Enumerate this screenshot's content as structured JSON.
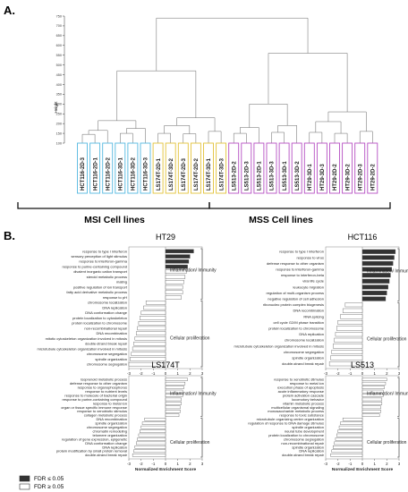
{
  "panel_labels": {
    "a": "A.",
    "b": "B."
  },
  "dendrogram": {
    "ylabel": "Height",
    "yticks": [
      "100",
      "150",
      "200",
      "250",
      "300",
      "350",
      "400",
      "450",
      "500",
      "550",
      "600",
      "650",
      "700",
      "750"
    ],
    "leaves": [
      {
        "label": "HCT116-2D-3",
        "group": "hct"
      },
      {
        "label": "HCT116-2D-1",
        "group": "hct"
      },
      {
        "label": "HCT116-2D-2",
        "group": "hct"
      },
      {
        "label": "HCT116-3D-1",
        "group": "hct"
      },
      {
        "label": "HCT116-3D-2",
        "group": "hct"
      },
      {
        "label": "HCT116-3D-3",
        "group": "hct"
      },
      {
        "label": "LS174T-2D-1",
        "group": "ls174"
      },
      {
        "label": "LS174T-3D-2",
        "group": "ls174"
      },
      {
        "label": "LS174T-2D-3",
        "group": "ls174"
      },
      {
        "label": "LS174T-2D-2",
        "group": "ls174"
      },
      {
        "label": "LS174T-3D-1",
        "group": "ls174"
      },
      {
        "label": "LS174T-3D-3",
        "group": "ls174"
      },
      {
        "label": "LS513-2D-2",
        "group": "ls513"
      },
      {
        "label": "LS513-2D-3",
        "group": "ls513"
      },
      {
        "label": "LS513-2D-1",
        "group": "ls513"
      },
      {
        "label": "LS513-3D-3",
        "group": "ls513"
      },
      {
        "label": "LS513-3D-1",
        "group": "ls513"
      },
      {
        "label": "LS513-3D-2",
        "group": "ls513"
      },
      {
        "label": "HT29-3D-1",
        "group": "ht29"
      },
      {
        "label": "HT29-3D-3",
        "group": "ht29"
      },
      {
        "label": "HT29-2D-2",
        "group": "ht29"
      },
      {
        "label": "HT29-3D-2",
        "group": "ht29"
      },
      {
        "label": "HT29-2D-3",
        "group": "ht29"
      },
      {
        "label": "HT29-2D-2",
        "group": "ht29"
      }
    ],
    "group_colors": {
      "hct": "#55b9e0",
      "ls174": "#e3c23a",
      "ls513": "#b54fc2",
      "ht29": "#b54fc2"
    },
    "groups_labels": {
      "msi": "MSI Cell lines",
      "mss": "MSS Cell lines"
    }
  },
  "legend": {
    "sig": "FDR ≤ 0.05",
    "nonsig": "FDR ≥ 0.05",
    "sig_color": "#333333",
    "nonsig_color": "#ffffff"
  },
  "chart_data": [
    {
      "type": "bar",
      "title": "HT29",
      "xlabel": "Normalized Enrichment Score",
      "xlim": [
        -3,
        3
      ],
      "xticks": [
        "-3",
        "-2",
        "-1",
        "0",
        "1",
        "2",
        "3"
      ],
      "group_labels": {
        "top": "Inflammation/ Immunity",
        "bottom": "Cellular proliferation"
      },
      "categories": [
        "response to type I interferon",
        "sensory perception of light stimulus",
        "response to interferon-gamma",
        "response to purine-containing compound",
        "divalent inorganic cation transport",
        "steroid metabolic process",
        "mating",
        "positive regulation of ion transport",
        "fatty acid derivative metabolic process",
        "response to pH",
        "chromosome localization",
        "DNA replication",
        "DNA conformation change",
        "protein localization to cytoskeleton",
        "protein localization to chromosome",
        "non-recombinational repair",
        "DNA recombination",
        "mitotic cytoskeleton organization involved in mitosis",
        "double-strand break repair",
        "microtubule cytoskeleton organization involved in mitosis",
        "chromosome segregation",
        "spindle organization",
        "chromosome segregation"
      ],
      "values": [
        2.3,
        2.0,
        1.9,
        1.8,
        1.7,
        1.6,
        1.5,
        1.4,
        1.4,
        1.3,
        -1.6,
        -1.8,
        -2.0,
        -2.1,
        -2.2,
        -2.3,
        -2.4,
        -2.5,
        -2.6,
        -2.7,
        -2.8,
        -2.9,
        -3.0
      ],
      "significant": [
        true,
        true,
        true,
        true,
        false,
        false,
        false,
        false,
        false,
        false,
        false,
        false,
        false,
        false,
        false,
        false,
        false,
        false,
        false,
        false,
        false,
        false,
        false
      ]
    },
    {
      "type": "bar",
      "title": "HCT116",
      "xlabel": "Normalized Enrichment Score",
      "xlim": [
        -3,
        3
      ],
      "xticks": [
        "-3",
        "-2",
        "-1",
        "0",
        "1",
        "2",
        "3"
      ],
      "group_labels": {
        "top": "Inflammation/ Immunity",
        "bottom": "Cellular proliferation"
      },
      "categories": [
        "response to type I interferon",
        "response to virus",
        "defense response to other organism",
        "response to interferon-gamma",
        "response to interferon-beta",
        "viral life cycle",
        "leukocyte migration",
        "regulation of multi-organism process",
        "negative regulation of cell adhesion",
        "ribonucleo protein complex biogenesis",
        "DNA recombination",
        "RNA splicing",
        "cell cycle G2/M phase transition",
        "protein localization to chromosome",
        "DNA replication",
        "chromosome localization",
        "microtubule cytoskeleton organization involved in mitosis",
        "chromosome segregation",
        "spindle organization",
        "double-strand break repair"
      ],
      "values": [
        2.7,
        2.6,
        2.5,
        2.4,
        2.3,
        2.2,
        2.1,
        2.0,
        1.9,
        -1.4,
        -1.6,
        -1.8,
        -2.0,
        -2.1,
        -2.2,
        -2.3,
        -2.4,
        -2.5,
        -2.6,
        -2.7
      ],
      "significant": [
        true,
        true,
        true,
        true,
        true,
        true,
        true,
        true,
        true,
        false,
        false,
        false,
        false,
        false,
        false,
        false,
        false,
        false,
        false,
        false
      ]
    },
    {
      "type": "bar",
      "title": "LS174T",
      "xlabel": "Normalized Enrichment Score",
      "xlim": [
        -3,
        3
      ],
      "xticks": [
        "-3",
        "-2",
        "-1",
        "0",
        "1",
        "2",
        "3"
      ],
      "group_labels": {
        "top": "Inflammation/ Immunity",
        "bottom": "Cellular proliferation"
      },
      "categories": [
        "isoprenoid metabolic process",
        "defense response to other organism",
        "response to organophosphorus",
        "response to nutrient levels",
        "response to molecule of bacterial origin",
        "response to purine-containing compound",
        "response to metal ion",
        "organ or tissue specific immune response",
        "response to xenobiotic stimulus",
        "collagen metabolic process",
        "DNA recombination",
        "spindle organization",
        "chromosome segregation",
        "chromatin remodeling",
        "telomere organization",
        "regulation of gene expression, epigenetic",
        "DNA conformation change",
        "DNA replication",
        "protein modification by small protein removal",
        "double-strand break repair"
      ],
      "values": [
        1.8,
        1.6,
        1.5,
        1.4,
        1.4,
        1.3,
        1.3,
        1.2,
        1.2,
        1.1,
        -1.7,
        -1.9,
        -2.0,
        -2.1,
        -2.2,
        -2.3,
        -2.4,
        -2.5,
        -2.6,
        -2.7
      ],
      "significant": [
        false,
        false,
        false,
        false,
        false,
        false,
        false,
        false,
        false,
        false,
        false,
        false,
        false,
        false,
        false,
        false,
        false,
        false,
        false,
        false
      ]
    },
    {
      "type": "bar",
      "title": "LS513",
      "xlabel": "Normalized Enrichment Score",
      "xlim": [
        -3,
        3
      ],
      "xticks": [
        "-3",
        "-2",
        "-1",
        "0",
        "1",
        "2",
        "3"
      ],
      "group_labels": {
        "top": "Inflammation/ Immunity",
        "bottom": "Cellular proliferation"
      },
      "categories": [
        "response to xenobiotic stimulus",
        "response to metal ion",
        "execution phase of apoptosis",
        "acute inflammatory response",
        "protein activation cascade",
        "locomotory behavior",
        "vitamin metabolic process",
        "multicellular organismal signaling",
        "monosaccharide metabolic process",
        "response to toxic substance",
        "microtubule organizing center organization",
        "regulation of response to DNA damage stimulus",
        "spindle organization",
        "neural tube development",
        "protein localization to chromosome",
        "chromosome segregation",
        "non-recombinational repair",
        "spindle organization",
        "DNA replication",
        "double-strand break repair"
      ],
      "values": [
        2.0,
        1.9,
        1.8,
        1.7,
        1.7,
        1.6,
        1.6,
        1.5,
        1.5,
        1.4,
        -1.6,
        -1.8,
        -1.9,
        -2.0,
        -2.1,
        -2.2,
        -2.3,
        -2.4,
        -2.5,
        -2.6
      ],
      "significant": [
        false,
        false,
        false,
        false,
        false,
        false,
        false,
        false,
        false,
        false,
        false,
        false,
        false,
        false,
        false,
        false,
        false,
        false,
        false,
        false
      ]
    }
  ]
}
